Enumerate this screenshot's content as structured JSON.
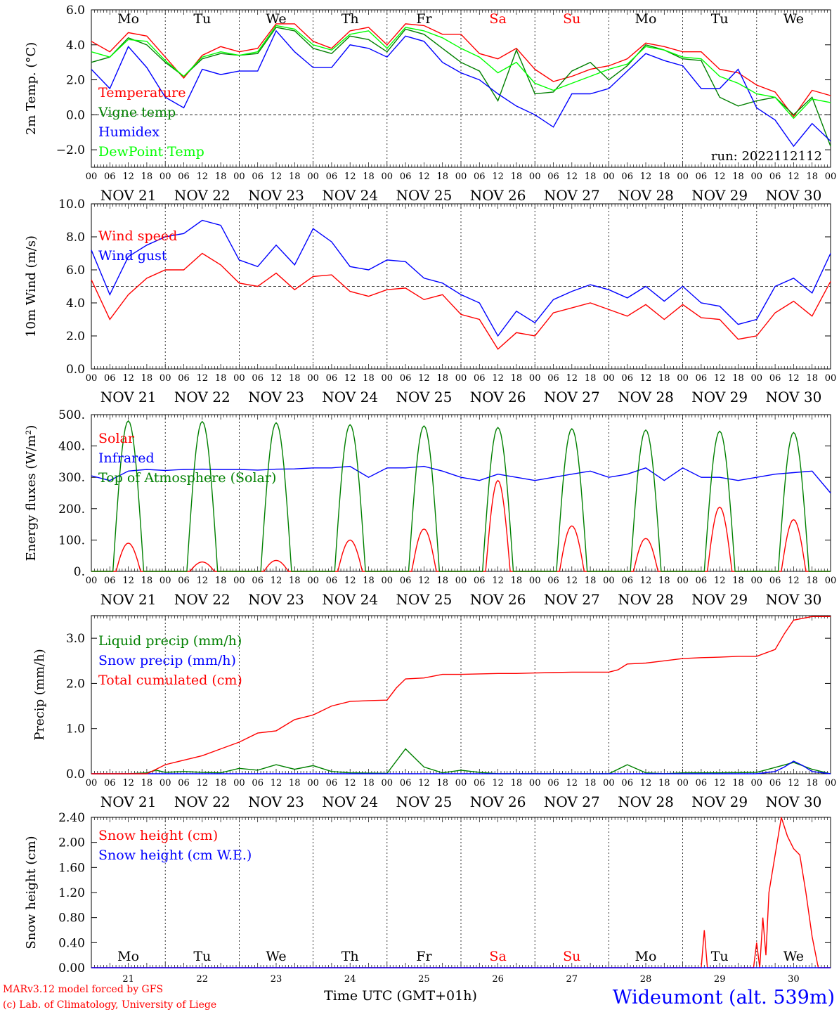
{
  "run_label": "run: 2022112112",
  "footer": {
    "model_line": "MARv3.12 model forced by GFS",
    "credit_line": "(c) Lab. of Climatology, University of Liege",
    "time_axis_label": "Time UTC (GMT+01h)",
    "time_axis_overprint": "",
    "station": "Wideumont (alt. 539m)"
  },
  "time_axis": {
    "dates": [
      "NOV 21",
      "NOV 22",
      "NOV 23",
      "NOV 24",
      "NOV 25",
      "NOV 26",
      "NOV 27",
      "NOV 28",
      "NOV 29",
      "NOV 30"
    ],
    "hours": [
      "00",
      "06",
      "12",
      "18"
    ],
    "weekdays": [
      "Mo",
      "Tu",
      "We",
      "Th",
      "Fr",
      "Sa",
      "Su",
      "Mo",
      "Tu",
      "We"
    ],
    "weekend_index": [
      5,
      6
    ],
    "day_numbers": [
      "21",
      "22",
      "23",
      "24",
      "25",
      "26",
      "27",
      "28",
      "29",
      "30"
    ]
  },
  "colors": {
    "red": "#ff0000",
    "green": "#008000",
    "blue": "#0000ff",
    "lightgreen": "#00ff00",
    "weekend": "#ff0000"
  },
  "chart_data": [
    {
      "type": "line",
      "ylabel": "2m Temp. (°C)",
      "ylim": [
        -3.0,
        6.0
      ],
      "yticks": [
        "6.0",
        "4.0",
        "2.0",
        "0.0",
        "−2.0"
      ],
      "x_unit": "hours since NOV 21 00 UTC",
      "refline": 0.0,
      "series": [
        {
          "name": "Temperature",
          "color": "#ff0000",
          "x": [
            0,
            6,
            12,
            18,
            24,
            30,
            36,
            42,
            48,
            54,
            60,
            66,
            72,
            78,
            84,
            90,
            96,
            102,
            108,
            114,
            120,
            126,
            132,
            138,
            144,
            150,
            156,
            162,
            168,
            174,
            180,
            186,
            192,
            198,
            204,
            210,
            216,
            222,
            228,
            234,
            240
          ],
          "y": [
            4.2,
            3.6,
            4.7,
            4.5,
            3.3,
            2.1,
            3.4,
            3.9,
            3.6,
            3.8,
            5.2,
            5.2,
            4.2,
            3.8,
            4.8,
            5.0,
            4.0,
            5.2,
            5.1,
            4.6,
            4.6,
            3.5,
            3.2,
            3.8,
            2.6,
            1.9,
            2.2,
            2.6,
            2.8,
            3.2,
            4.1,
            3.9,
            3.6,
            3.6,
            2.6,
            2.4,
            1.7,
            1.3,
            -0.1,
            1.4,
            1.1
          ]
        },
        {
          "name": "Vigne temp",
          "color": "#008000",
          "x": [
            0,
            6,
            12,
            18,
            24,
            30,
            36,
            42,
            48,
            54,
            60,
            66,
            72,
            78,
            84,
            90,
            96,
            102,
            108,
            114,
            120,
            126,
            132,
            138,
            144,
            150,
            156,
            162,
            168,
            174,
            180,
            186,
            192,
            198,
            204,
            210,
            216,
            222,
            228,
            234,
            240
          ],
          "y": [
            3.0,
            3.3,
            4.4,
            4.0,
            3.0,
            2.2,
            3.2,
            3.5,
            3.4,
            3.5,
            5.0,
            4.8,
            3.8,
            3.5,
            4.5,
            4.3,
            3.6,
            4.9,
            4.6,
            3.8,
            3.0,
            2.5,
            0.8,
            3.7,
            1.2,
            1.3,
            2.5,
            3.0,
            2.0,
            2.8,
            4.0,
            3.7,
            3.2,
            3.1,
            1.0,
            0.5,
            0.8,
            1.0,
            0.0,
            1.0,
            -1.8
          ]
        },
        {
          "name": "Humidex",
          "color": "#0000ff",
          "x": [
            0,
            6,
            12,
            18,
            24,
            30,
            36,
            42,
            48,
            54,
            60,
            66,
            72,
            78,
            84,
            90,
            96,
            102,
            108,
            114,
            120,
            126,
            132,
            138,
            144,
            150,
            156,
            162,
            168,
            174,
            180,
            186,
            192,
            198,
            204,
            210,
            216,
            222,
            228,
            234,
            240
          ],
          "y": [
            2.6,
            1.5,
            3.9,
            2.7,
            1.0,
            0.4,
            2.6,
            2.3,
            2.5,
            2.5,
            4.8,
            3.6,
            2.7,
            2.7,
            4.0,
            3.8,
            3.3,
            4.5,
            4.2,
            3.0,
            2.4,
            2.0,
            1.2,
            0.5,
            0.0,
            -0.7,
            1.2,
            1.2,
            1.5,
            2.5,
            3.5,
            3.1,
            2.8,
            1.5,
            1.5,
            2.6,
            0.4,
            -0.3,
            -1.8,
            -0.5,
            -1.5
          ]
        },
        {
          "name": "DewPoint Temp",
          "color": "#00ff00",
          "x": [
            0,
            6,
            12,
            18,
            24,
            30,
            36,
            42,
            48,
            54,
            60,
            66,
            72,
            78,
            84,
            90,
            96,
            102,
            108,
            114,
            120,
            126,
            132,
            138,
            144,
            150,
            156,
            162,
            168,
            174,
            180,
            186,
            192,
            198,
            204,
            210,
            216,
            222,
            228,
            234,
            240
          ],
          "y": [
            3.6,
            3.3,
            4.3,
            4.2,
            3.1,
            2.2,
            3.3,
            3.6,
            3.4,
            3.6,
            5.1,
            4.9,
            4.0,
            3.7,
            4.6,
            4.8,
            3.8,
            5.0,
            4.8,
            4.4,
            3.8,
            3.3,
            2.4,
            3.0,
            1.8,
            1.4,
            1.8,
            2.2,
            2.6,
            2.9,
            3.9,
            3.7,
            3.3,
            3.2,
            2.2,
            1.8,
            1.2,
            1.0,
            -0.2,
            0.9,
            0.7
          ]
        }
      ]
    },
    {
      "type": "line",
      "ylabel": "10m Wind (m/s)",
      "ylim": [
        0.0,
        10.0
      ],
      "yticks": [
        "10.0",
        "8.0",
        "6.0",
        "4.0",
        "2.0",
        "0.0"
      ],
      "x_unit": "hours since NOV 21 00 UTC",
      "refline": 5.0,
      "series": [
        {
          "name": "Wind speed",
          "color": "#ff0000",
          "x": [
            0,
            6,
            12,
            18,
            24,
            30,
            36,
            42,
            48,
            54,
            60,
            66,
            72,
            78,
            84,
            90,
            96,
            102,
            108,
            114,
            120,
            126,
            132,
            138,
            144,
            150,
            156,
            162,
            168,
            174,
            180,
            186,
            192,
            198,
            204,
            210,
            216,
            222,
            228,
            234,
            240
          ],
          "y": [
            5.4,
            3.0,
            4.5,
            5.5,
            6.0,
            6.0,
            7.0,
            6.3,
            5.2,
            5.0,
            5.8,
            4.8,
            5.6,
            5.7,
            4.7,
            4.4,
            4.8,
            4.9,
            4.2,
            4.5,
            3.3,
            3.0,
            1.2,
            2.2,
            2.0,
            3.4,
            3.7,
            4.0,
            3.6,
            3.2,
            3.9,
            3.0,
            3.9,
            3.1,
            3.0,
            1.8,
            2.0,
            3.4,
            4.1,
            3.2,
            5.3
          ]
        },
        {
          "name": "Wind gust",
          "color": "#0000ff",
          "x": [
            0,
            6,
            12,
            18,
            24,
            30,
            36,
            42,
            48,
            54,
            60,
            66,
            72,
            78,
            84,
            90,
            96,
            102,
            108,
            114,
            120,
            126,
            132,
            138,
            144,
            150,
            156,
            162,
            168,
            174,
            180,
            186,
            192,
            198,
            204,
            210,
            216,
            222,
            228,
            234,
            240
          ],
          "y": [
            7.2,
            4.5,
            6.8,
            7.5,
            8.0,
            8.2,
            9.0,
            8.7,
            6.6,
            6.2,
            7.5,
            6.3,
            8.5,
            7.7,
            6.2,
            6.0,
            6.6,
            6.5,
            5.5,
            5.2,
            4.5,
            4.0,
            2.0,
            3.5,
            2.8,
            4.2,
            4.7,
            5.1,
            4.8,
            4.3,
            5.0,
            4.1,
            5.0,
            4.0,
            3.8,
            2.7,
            3.0,
            5.0,
            5.5,
            4.6,
            7.0
          ]
        }
      ]
    },
    {
      "type": "line",
      "ylabel": "Energy fluxes (W/m²)",
      "ylim": [
        0,
        500
      ],
      "yticks": [
        "500.",
        "400.",
        "300.",
        "200.",
        "100.",
        "0."
      ],
      "x_unit": "hours since NOV 21 00 UTC",
      "series": [
        {
          "name": "Solar",
          "color": "#ff0000",
          "peak_hour": 12,
          "peaks": [
            90,
            30,
            35,
            100,
            135,
            290,
            145,
            105,
            205,
            165
          ]
        },
        {
          "name": "Infrared",
          "color": "#0000ff",
          "x": [
            0,
            6,
            12,
            18,
            24,
            30,
            36,
            42,
            48,
            54,
            60,
            66,
            72,
            78,
            84,
            90,
            96,
            102,
            108,
            114,
            120,
            126,
            132,
            138,
            144,
            150,
            156,
            162,
            168,
            174,
            180,
            186,
            192,
            198,
            204,
            210,
            216,
            222,
            228,
            234,
            240
          ],
          "y": [
            305,
            290,
            320,
            325,
            322,
            325,
            326,
            325,
            325,
            323,
            326,
            327,
            330,
            330,
            335,
            300,
            330,
            330,
            335,
            320,
            300,
            290,
            310,
            300,
            290,
            300,
            310,
            320,
            300,
            310,
            330,
            290,
            330,
            300,
            300,
            290,
            300,
            310,
            315,
            320,
            250
          ]
        },
        {
          "name": "Top of Atmosphere (Solar)",
          "color": "#008000",
          "peak_hour": 12,
          "peaks": [
            480,
            478,
            474,
            468,
            464,
            459,
            455,
            451,
            447,
            443
          ]
        }
      ]
    },
    {
      "type": "line",
      "ylabel": "Precip (mm/h)",
      "ylim": [
        0.0,
        3.5
      ],
      "yticks": [
        "3.0",
        "2.0",
        "1.0",
        "0.0"
      ],
      "x_unit": "hours since NOV 21 00 UTC",
      "series": [
        {
          "name": "Liquid precip (mm/h)",
          "color": "#008000",
          "x": [
            0,
            12,
            18,
            21,
            24,
            30,
            36,
            42,
            48,
            54,
            60,
            66,
            72,
            78,
            84,
            96,
            102,
            108,
            114,
            120,
            126,
            132,
            144,
            156,
            168,
            174,
            180,
            186,
            192,
            204,
            216,
            228,
            234,
            240
          ],
          "y": [
            0,
            0,
            0.02,
            0.08,
            0.03,
            0.05,
            0.03,
            0.02,
            0.12,
            0.08,
            0.2,
            0.1,
            0.18,
            0.05,
            0.02,
            0.01,
            0.55,
            0.15,
            0.02,
            0.08,
            0.03,
            0,
            0,
            0,
            0,
            0.2,
            0.02,
            0,
            0.02,
            0.02,
            0.03,
            0.25,
            0.1,
            0
          ]
        },
        {
          "name": "Snow precip (mm/h)",
          "color": "#0000ff",
          "x": [
            0,
            216,
            222,
            225,
            228,
            231,
            234,
            240
          ],
          "y": [
            0,
            0,
            0.05,
            0.15,
            0.28,
            0.18,
            0.05,
            0
          ]
        },
        {
          "name": "Total cumulated (cm)",
          "color": "#ff0000",
          "x": [
            0,
            18,
            21,
            24,
            30,
            36,
            42,
            48,
            54,
            60,
            66,
            72,
            78,
            84,
            90,
            96,
            99,
            102,
            108,
            114,
            120,
            126,
            132,
            138,
            144,
            150,
            156,
            162,
            168,
            171,
            174,
            180,
            186,
            192,
            198,
            204,
            210,
            216,
            222,
            225,
            228,
            234,
            240
          ],
          "y": [
            0,
            0,
            0.1,
            0.2,
            0.3,
            0.4,
            0.55,
            0.7,
            0.9,
            0.95,
            1.2,
            1.3,
            1.5,
            1.6,
            1.62,
            1.63,
            1.9,
            2.1,
            2.12,
            2.2,
            2.2,
            2.21,
            2.22,
            2.22,
            2.23,
            2.24,
            2.25,
            2.25,
            2.25,
            2.3,
            2.43,
            2.45,
            2.5,
            2.55,
            2.57,
            2.58,
            2.6,
            2.6,
            2.75,
            3.1,
            3.4,
            3.48,
            3.48
          ]
        }
      ]
    },
    {
      "type": "line",
      "ylabel": "Snow height (cm)",
      "ylim": [
        0.0,
        2.4
      ],
      "yticks": [
        "2.40",
        "2.00",
        "1.60",
        "1.20",
        "0.80",
        "0.40",
        "0.00"
      ],
      "x_unit": "hours since NOV 21 00 UTC",
      "series": [
        {
          "name": "Snow height (cm)",
          "color": "#ff0000",
          "x": [
            0,
            198,
            199,
            200,
            201,
            215,
            216,
            217,
            218,
            219,
            220,
            222,
            224,
            226,
            228,
            230,
            232,
            234,
            236,
            240
          ],
          "y": [
            0,
            0,
            0.6,
            0,
            0,
            0,
            0.4,
            0,
            0.8,
            0.2,
            1.2,
            1.8,
            2.4,
            2.1,
            1.9,
            1.8,
            1.2,
            0.5,
            0,
            0
          ]
        },
        {
          "name": "Snow height (cm W.E.)",
          "color": "#0000ff",
          "x": [
            0,
            240
          ],
          "y": [
            0,
            0
          ]
        }
      ]
    }
  ]
}
